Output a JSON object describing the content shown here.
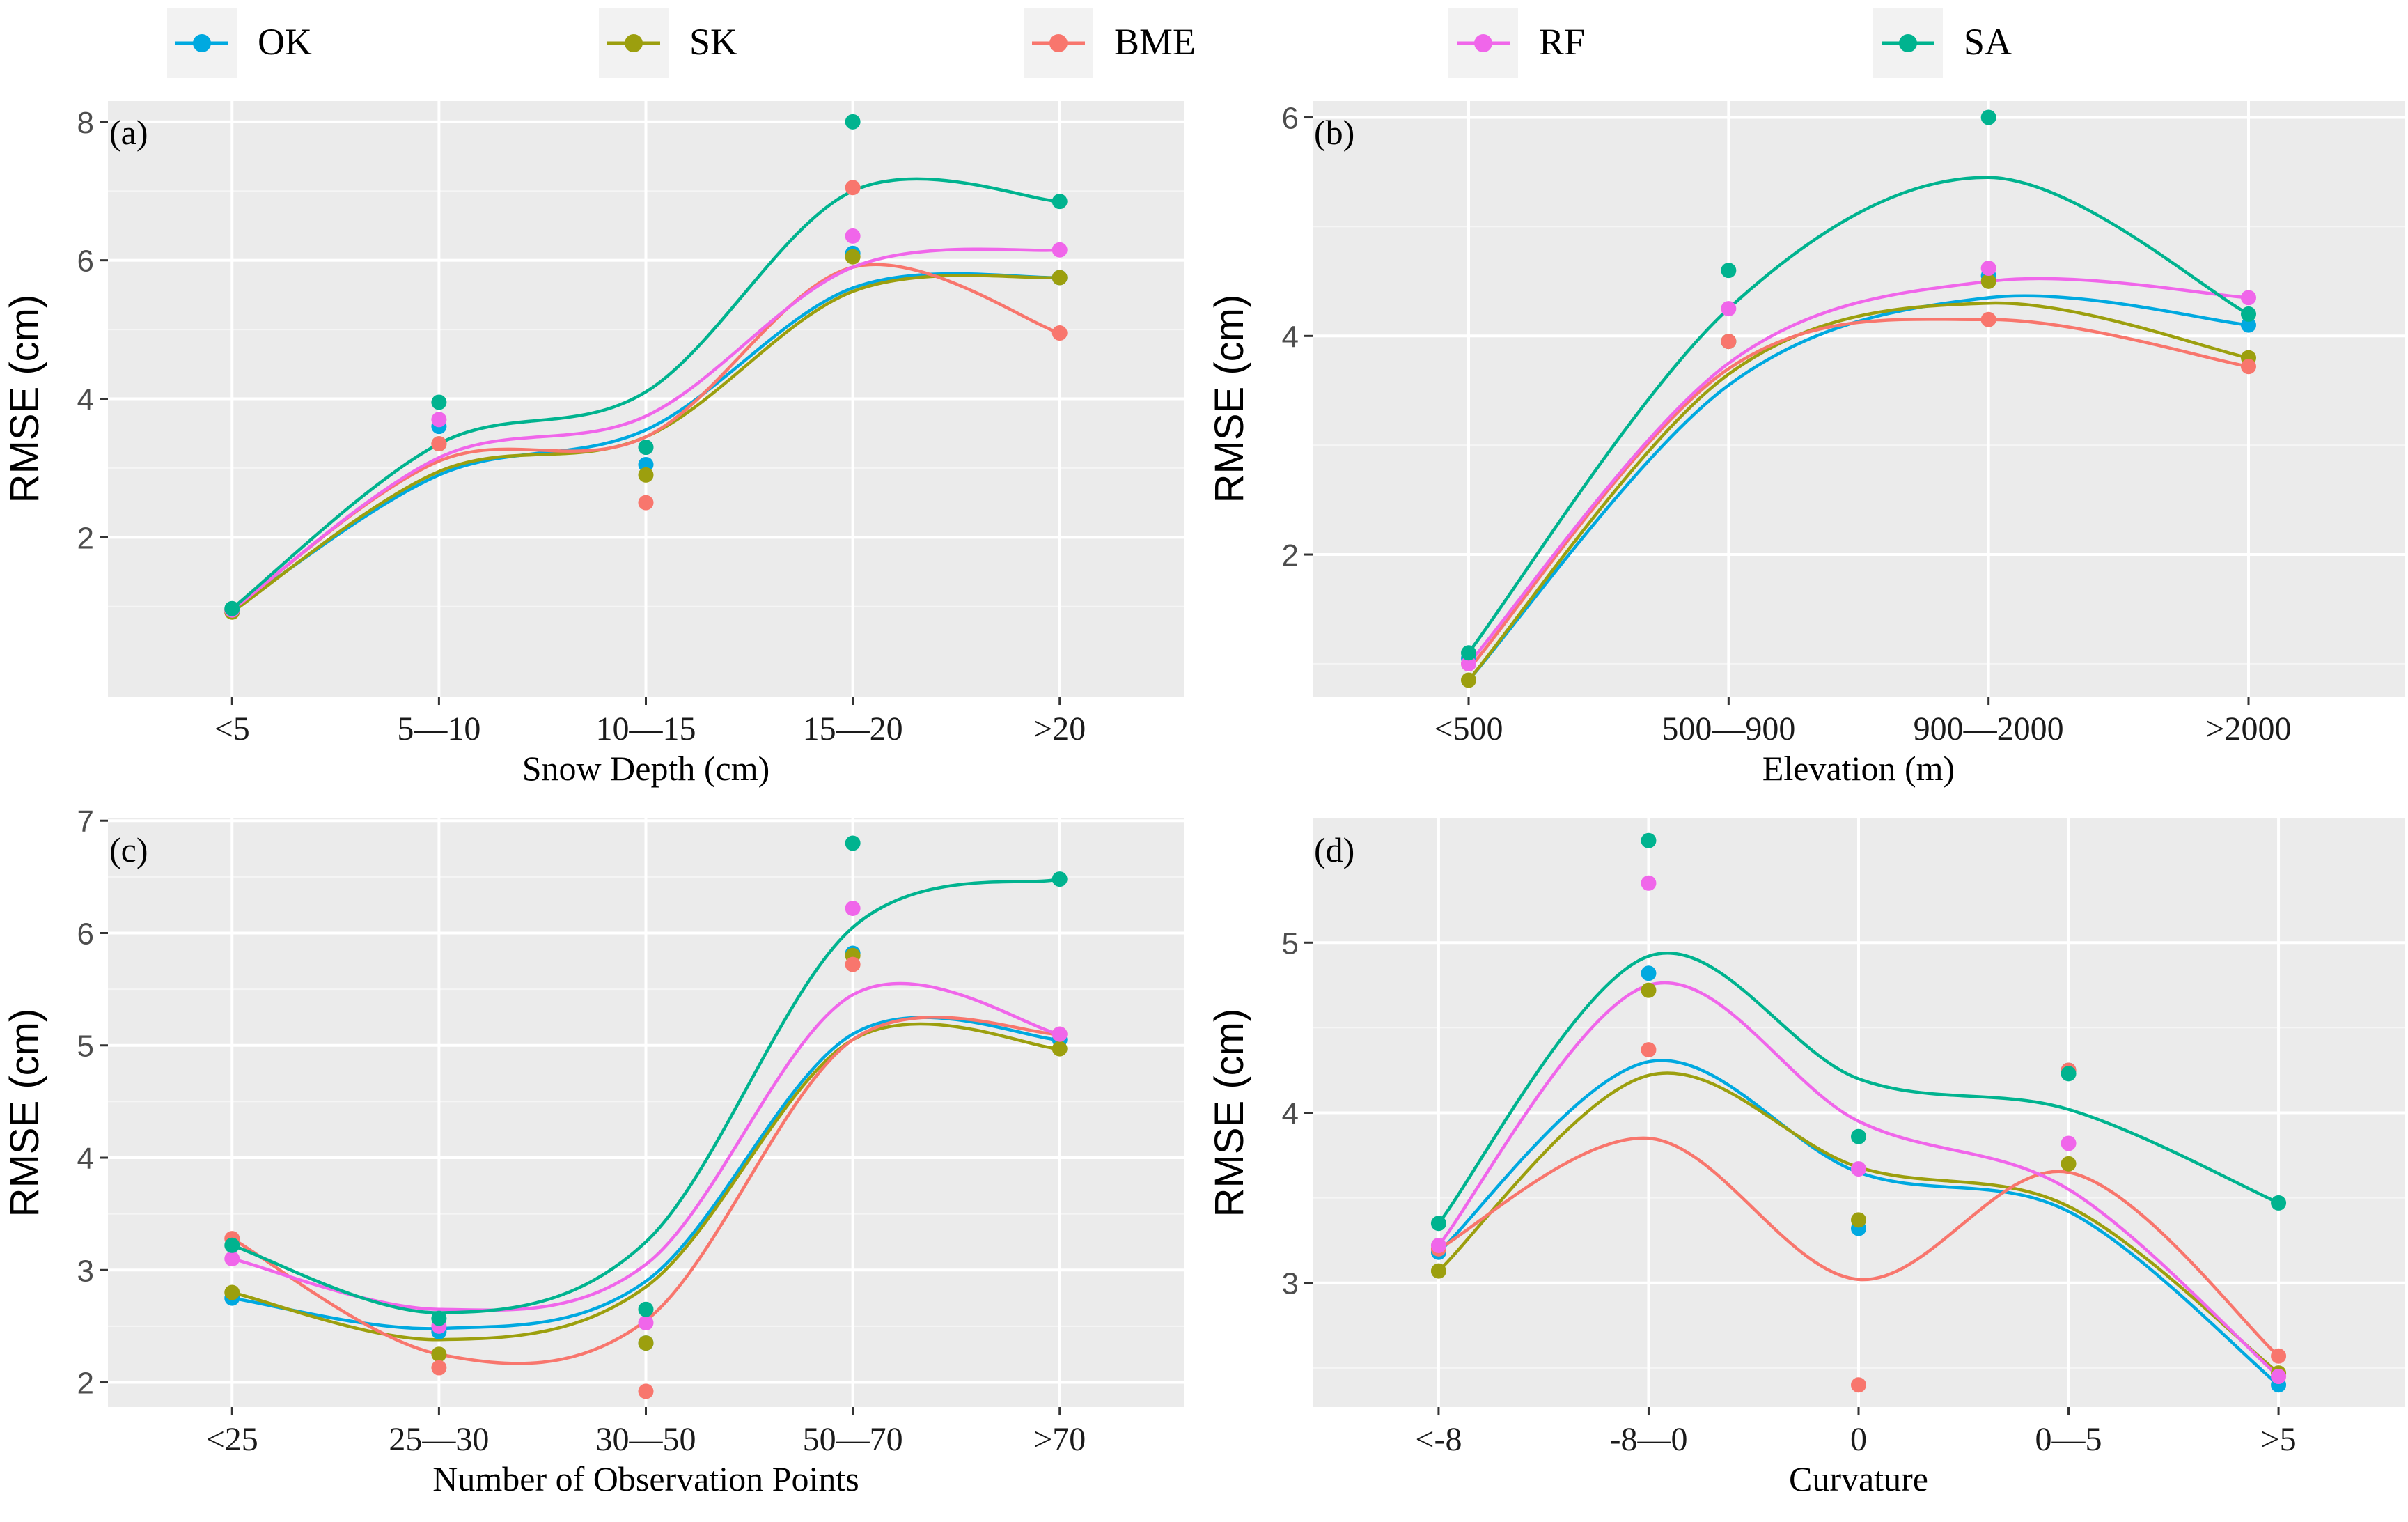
{
  "legend": {
    "items": [
      {
        "label": "OK",
        "color": "#00A9E0"
      },
      {
        "label": "SK",
        "color": "#9C9F0E"
      },
      {
        "label": "BME",
        "color": "#F8766D"
      },
      {
        "label": "RF",
        "color": "#F066EA"
      },
      {
        "label": "SA",
        "color": "#00B38F"
      }
    ]
  },
  "chart_data": [
    {
      "type": "line",
      "panel_label": "(a)",
      "categories": [
        "<5",
        "5—10",
        "10—15",
        "15—20",
        ">20"
      ],
      "xlabel": "Snow Depth (cm)",
      "ylabel": "RMSE (cm)",
      "ylim": [
        -0.3,
        8.3
      ],
      "yticks": [
        2,
        4,
        6,
        8
      ],
      "series": [
        {
          "name": "OK",
          "values": [
            0.95,
            3.6,
            3.05,
            6.1,
            5.75
          ]
        },
        {
          "name": "SK",
          "values": [
            0.92,
            3.35,
            2.9,
            6.05,
            5.75
          ]
        },
        {
          "name": "BME",
          "values": [
            0.95,
            3.35,
            2.5,
            7.05,
            4.95
          ]
        },
        {
          "name": "RF",
          "values": [
            0.95,
            3.7,
            3.3,
            6.35,
            6.15
          ]
        },
        {
          "name": "SA",
          "values": [
            0.97,
            3.95,
            3.3,
            8.0,
            6.85
          ]
        }
      ],
      "smooth_fits": [
        {
          "name": "OK",
          "values": [
            0.95,
            2.9,
            3.55,
            5.6,
            5.75
          ]
        },
        {
          "name": "SK",
          "values": [
            0.92,
            2.95,
            3.45,
            5.55,
            5.75
          ]
        },
        {
          "name": "BME",
          "values": [
            0.95,
            3.1,
            3.45,
            5.9,
            4.95
          ]
        },
        {
          "name": "RF",
          "values": [
            0.95,
            3.15,
            3.75,
            5.9,
            6.15
          ]
        },
        {
          "name": "SA",
          "values": [
            0.97,
            3.35,
            4.1,
            7.0,
            6.85
          ]
        }
      ]
    },
    {
      "type": "line",
      "panel_label": "(b)",
      "categories": [
        "<500",
        "500—900",
        "900—2000",
        ">2000"
      ],
      "xlabel": "Elevation (m)",
      "ylabel": "RMSE (cm)",
      "ylim": [
        0.7,
        6.15
      ],
      "yticks": [
        2,
        4,
        6
      ],
      "series": [
        {
          "name": "OK",
          "values": [
            1.05,
            3.95,
            4.55,
            4.1
          ]
        },
        {
          "name": "SK",
          "values": [
            0.85,
            3.95,
            4.5,
            3.8
          ]
        },
        {
          "name": "BME",
          "values": [
            1.0,
            3.95,
            4.15,
            3.72
          ]
        },
        {
          "name": "RF",
          "values": [
            1.0,
            4.25,
            4.62,
            4.35
          ]
        },
        {
          "name": "SA",
          "values": [
            1.1,
            4.6,
            6.0,
            4.2
          ]
        }
      ],
      "smooth_fits": [
        {
          "name": "OK",
          "values": [
            0.85,
            3.55,
            4.35,
            4.1
          ]
        },
        {
          "name": "SK",
          "values": [
            0.85,
            3.65,
            4.3,
            3.8
          ]
        },
        {
          "name": "BME",
          "values": [
            0.95,
            3.7,
            4.15,
            3.72
          ]
        },
        {
          "name": "RF",
          "values": [
            1.0,
            3.75,
            4.5,
            4.35
          ]
        },
        {
          "name": "SA",
          "values": [
            1.1,
            4.25,
            5.45,
            4.2
          ]
        }
      ]
    },
    {
      "type": "line",
      "panel_label": "(c)",
      "categories": [
        "<25",
        "25—30",
        "30—50",
        "50—70",
        ">70"
      ],
      "xlabel": "Number of Observation Points",
      "ylabel": "RMSE (cm)",
      "ylim": [
        1.78,
        7.02
      ],
      "yticks": [
        2,
        3,
        4,
        5,
        6,
        7
      ],
      "series": [
        {
          "name": "OK",
          "values": [
            2.75,
            2.45,
            2.35,
            5.82,
            5.05
          ]
        },
        {
          "name": "SK",
          "values": [
            2.8,
            2.25,
            2.35,
            5.8,
            4.97
          ]
        },
        {
          "name": "BME",
          "values": [
            3.28,
            2.13,
            1.92,
            5.72,
            5.1
          ]
        },
        {
          "name": "RF",
          "values": [
            3.1,
            2.5,
            2.53,
            6.22,
            5.1
          ]
        },
        {
          "name": "SA",
          "values": [
            3.22,
            2.57,
            2.65,
            6.8,
            6.48
          ]
        }
      ],
      "smooth_fits": [
        {
          "name": "OK",
          "values": [
            2.75,
            2.48,
            2.9,
            5.1,
            5.05
          ]
        },
        {
          "name": "SK",
          "values": [
            2.8,
            2.38,
            2.85,
            5.05,
            4.97
          ]
        },
        {
          "name": "BME",
          "values": [
            3.28,
            2.25,
            2.55,
            5.05,
            5.1
          ]
        },
        {
          "name": "RF",
          "values": [
            3.1,
            2.65,
            3.05,
            5.45,
            5.1
          ]
        },
        {
          "name": "SA",
          "values": [
            3.22,
            2.62,
            3.25,
            6.05,
            6.48
          ]
        }
      ]
    },
    {
      "type": "line",
      "panel_label": "(d)",
      "categories": [
        "<-8",
        "-8—0",
        "0",
        "0—5",
        ">5"
      ],
      "xlabel": "Curvature",
      "ylabel": "RMSE (cm)",
      "ylim": [
        2.27,
        5.73
      ],
      "yticks": [
        3,
        4,
        5
      ],
      "series": [
        {
          "name": "OK",
          "values": [
            3.18,
            4.82,
            3.32,
            4.25,
            2.4
          ]
        },
        {
          "name": "SK",
          "values": [
            3.07,
            4.72,
            3.37,
            3.7,
            2.47
          ]
        },
        {
          "name": "BME",
          "values": [
            3.2,
            4.37,
            2.4,
            4.25,
            2.57
          ]
        },
        {
          "name": "RF",
          "values": [
            3.22,
            5.35,
            3.67,
            3.82,
            2.45
          ]
        },
        {
          "name": "SA",
          "values": [
            3.35,
            5.6,
            3.86,
            4.23,
            3.47
          ]
        }
      ],
      "smooth_fits": [
        {
          "name": "OK",
          "values": [
            3.18,
            4.3,
            3.65,
            3.42,
            2.4
          ]
        },
        {
          "name": "SK",
          "values": [
            3.07,
            4.22,
            3.68,
            3.45,
            2.47
          ]
        },
        {
          "name": "BME",
          "values": [
            3.2,
            3.85,
            3.02,
            3.65,
            2.57
          ]
        },
        {
          "name": "RF",
          "values": [
            3.22,
            4.75,
            3.95,
            3.55,
            2.45
          ]
        },
        {
          "name": "SA",
          "values": [
            3.35,
            4.92,
            4.2,
            4.02,
            3.47
          ]
        }
      ]
    }
  ]
}
